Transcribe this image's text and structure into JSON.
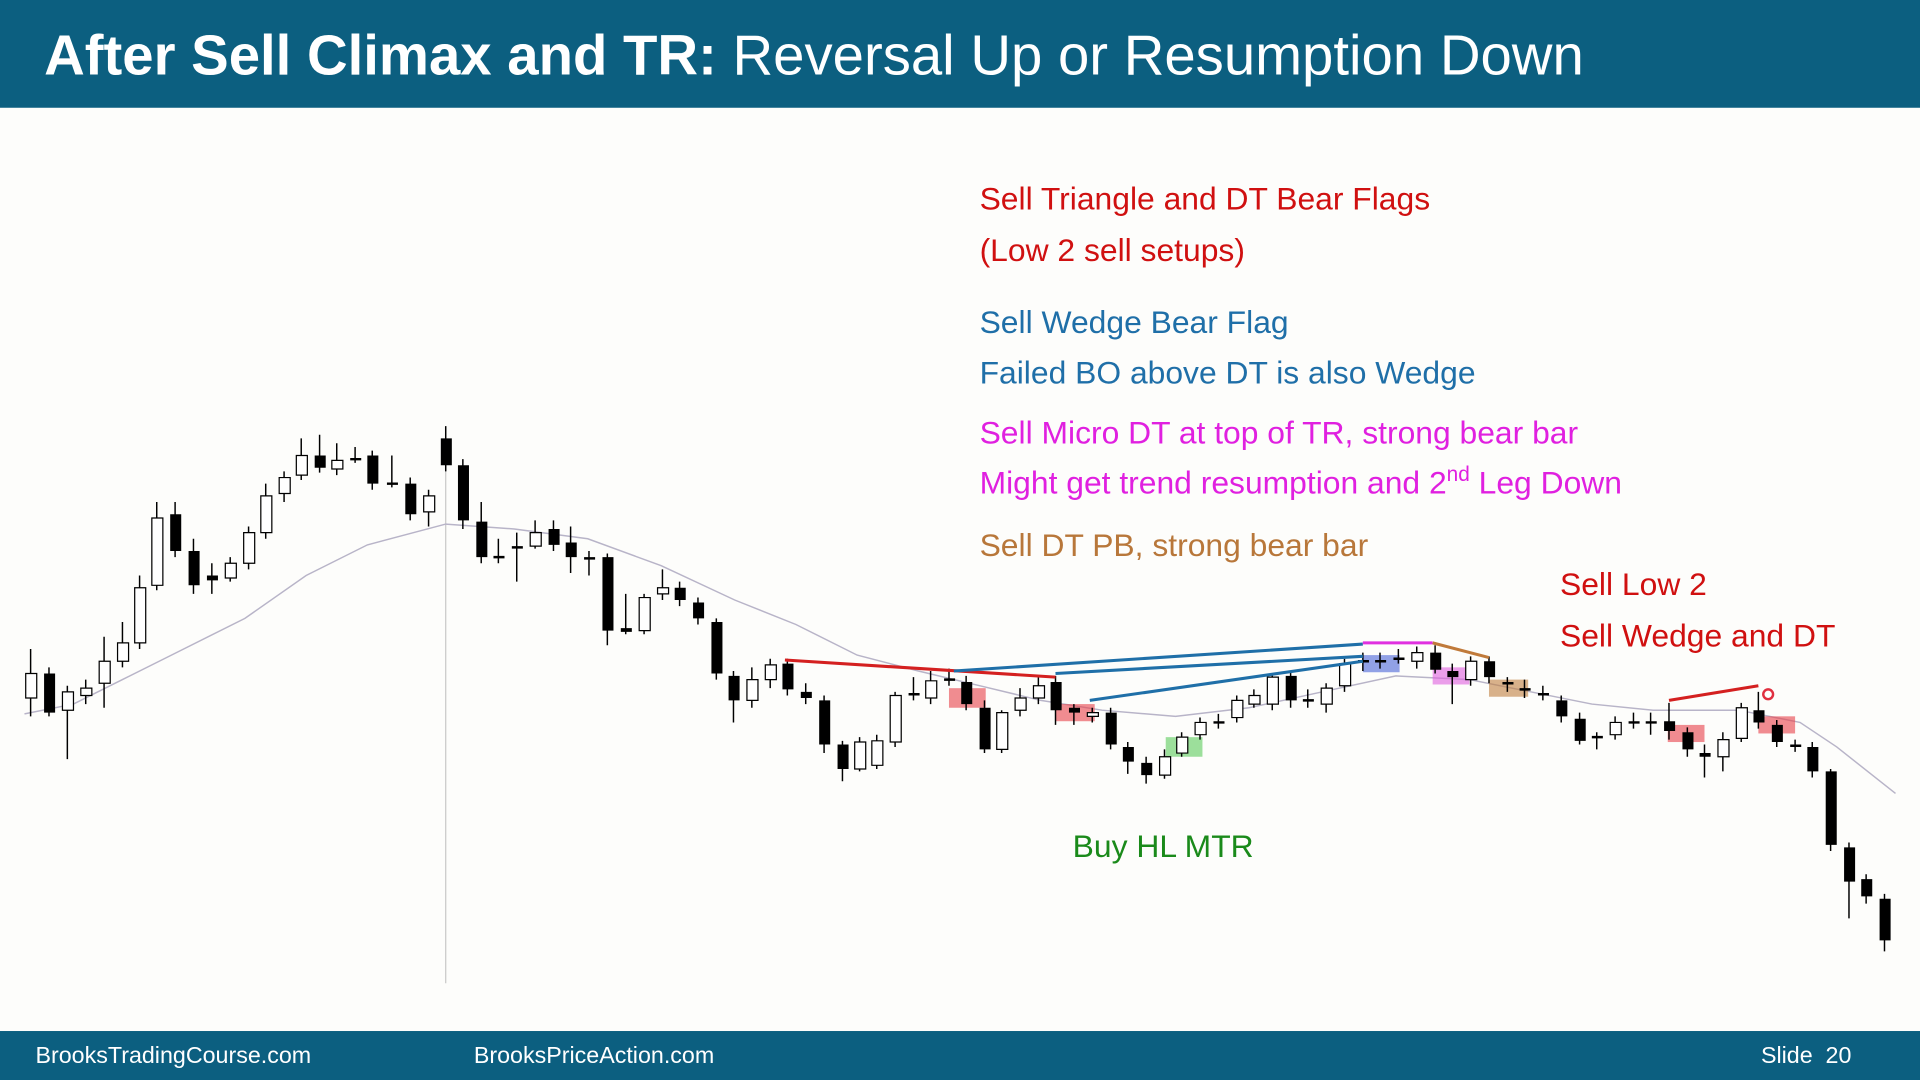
{
  "header": {
    "title_bold": "After Sell Climax and TR:",
    "title_rest": "Reversal Up or Resumption Down"
  },
  "annotations": {
    "triangle": [
      "Sell Triangle and DT Bear Flags",
      "(Low 2 sell setups)"
    ],
    "wedge": [
      "Sell Wedge Bear Flag",
      "Failed BO above DT is also Wedge"
    ],
    "micro_dt": [
      "Sell Micro DT at top of TR, strong bear bar",
      "Might get trend resumption and 2",
      "nd",
      " Leg Down"
    ],
    "dt_pb": "Sell DT PB, strong bear bar",
    "low2": [
      "Sell Low 2",
      "Sell Wedge and DT"
    ],
    "buy": "Buy HL MTR"
  },
  "footer": {
    "left": "BrooksTradingCourse.com",
    "center": "BrooksPriceAction.com",
    "slide": "Slide  20"
  }
}
